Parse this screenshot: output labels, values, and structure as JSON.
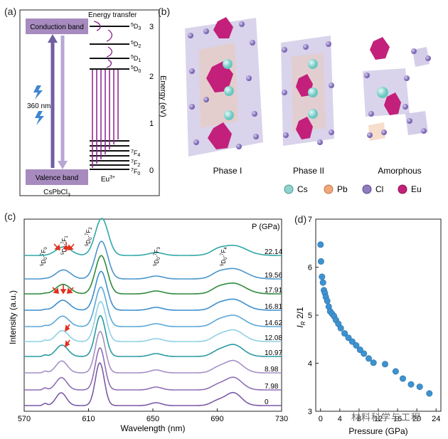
{
  "panels": {
    "a": "(a)",
    "b": "(b)",
    "c": "(c)",
    "d": "(d)"
  },
  "panel_a": {
    "conduction": "Conduction band",
    "valence": "Valence band",
    "excitation": "360 nm",
    "material": "CsPbCl",
    "material_sub": "3",
    "energy_transfer": "Energy transfer",
    "eu": "Eu",
    "eu_sup": "3+",
    "yaxis": "Energy (eV)",
    "ticks": [
      "3",
      "2",
      "1",
      "0"
    ],
    "levels_top": [
      "5D3",
      "5D2",
      "5D1",
      "5D0"
    ],
    "levels_bottom": [
      "7F4",
      "7F2",
      "7F0"
    ],
    "colors": {
      "band": "#a78bbf",
      "arrow_up": "#7b6aa6",
      "arrow_down": "#a58fc7",
      "purple": "#8a1f8d"
    }
  },
  "panel_b": {
    "phases": [
      "Phase I",
      "Phase II",
      "Amorphous"
    ],
    "legend": [
      {
        "label": "Cs",
        "color": "#8fd3cf"
      },
      {
        "label": "Pb",
        "color": "#f0a77b"
      },
      {
        "label": "Cl",
        "color": "#8f7cc0"
      },
      {
        "label": "Eu",
        "color": "#c2207a"
      }
    ]
  },
  "panel_c": {
    "unit_label": "P (GPa)",
    "peak_labels": [
      "5D0-7F0",
      "5D0-7F1",
      "5D0-7F2",
      "5D0-7F3",
      "5D0-7F4"
    ]
  },
  "panel_d": {
    "ylabel": "I_R 2/1",
    "ylabel_main": "I",
    "ylabel_sub": "R",
    "ylabel_rest": " 2/1"
  },
  "chart_data": [
    {
      "type": "line",
      "title": "",
      "xlabel": "Wavelength (nm)",
      "ylabel": "Intensity (a.u.)",
      "xlim": [
        570,
        730
      ],
      "xticks": [
        570,
        610,
        650,
        690,
        730
      ],
      "series": [
        {
          "name": "0",
          "color": "#7a5aa6"
        },
        {
          "name": "7.98",
          "color": "#8d6fb6"
        },
        {
          "name": "8.98",
          "color": "#a690c6"
        },
        {
          "name": "10.97",
          "color": "#2a9aa3"
        },
        {
          "name": "12.08",
          "color": "#8fd0e4"
        },
        {
          "name": "14.62",
          "color": "#5aa8da"
        },
        {
          "name": "16.81",
          "color": "#3d8fce"
        },
        {
          "name": "17.91",
          "color": "#2f8a3c"
        },
        {
          "name": "19.56",
          "color": "#4a95cc"
        },
        {
          "name": "22.14",
          "color": "#2ea7a6"
        }
      ]
    },
    {
      "type": "scatter",
      "title": "",
      "xlabel": "Pressure (GPa)",
      "ylabel": "I_R 2/1",
      "xlim": [
        -1,
        25
      ],
      "ylim": [
        3,
        7
      ],
      "xticks": [
        0,
        4,
        8,
        12,
        16,
        20,
        24
      ],
      "yticks": [
        3,
        4,
        5,
        6,
        7
      ],
      "x": [
        0,
        0.1,
        0.3,
        0.5,
        0.7,
        0.9,
        1.1,
        1.4,
        1.7,
        2.0,
        2.4,
        2.8,
        3.2,
        3.7,
        4.2,
        5.0,
        5.8,
        6.6,
        7.4,
        8.2,
        9.0,
        10.0,
        11.0,
        13.4,
        15.6,
        17.1,
        18.8,
        20.6,
        22.6
      ],
      "y": [
        6.47,
        6.12,
        5.8,
        5.68,
        5.52,
        5.46,
        5.38,
        5.3,
        5.18,
        5.08,
        5.03,
        4.98,
        4.9,
        4.82,
        4.73,
        4.62,
        4.53,
        4.45,
        4.37,
        4.28,
        4.2,
        4.1,
        4.01,
        3.98,
        3.83,
        3.68,
        3.56,
        3.51,
        3.37
      ],
      "color": "#3e92d0"
    }
  ],
  "watermark": "材料科学与工程"
}
